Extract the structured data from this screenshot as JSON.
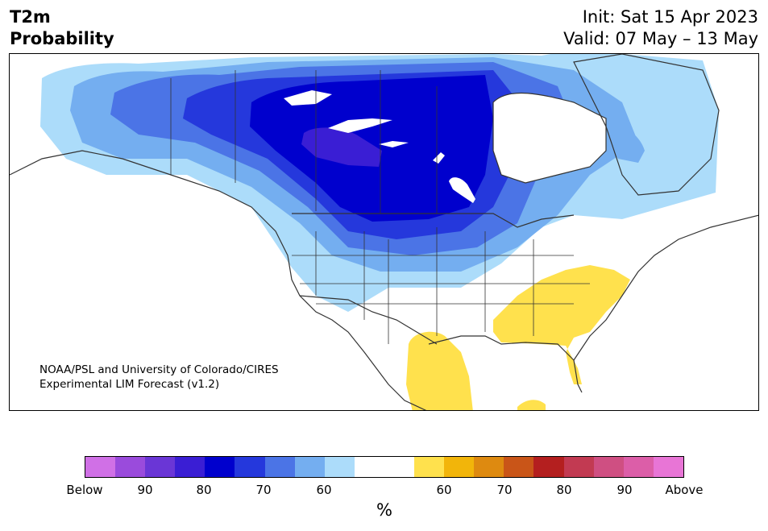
{
  "title": {
    "line1": "T2m",
    "line2": "Probability"
  },
  "dates": {
    "init": "Init: Sat 15 Apr 2023",
    "valid": "Valid: 07 May – 13 May"
  },
  "credit": {
    "line1": "NOAA/PSL and University of Colorado/CIRES",
    "line2": "Experimental LIM Forecast (v1.2)"
  },
  "colorbar": {
    "colors": [
      "#d070e6",
      "#9a4bdc",
      "#6a36d6",
      "#3a1ed4",
      "#0000cd",
      "#2538dc",
      "#4b74e6",
      "#74aef0",
      "#acdcfa",
      "#ffffff",
      "#ffffff",
      "#ffe14d",
      "#f2b50a",
      "#de8a10",
      "#c95518",
      "#b41f1f",
      "#c23a52",
      "#cf4f82",
      "#dc5ea8",
      "#e875d6"
    ],
    "tick_labels": [
      "Below",
      "90",
      "80",
      "70",
      "60",
      "60",
      "70",
      "80",
      "90",
      "Above"
    ],
    "unit": "%"
  },
  "categories": {
    "below": [
      "Below",
      "90",
      "80",
      "70",
      "60"
    ],
    "above": [
      "60",
      "70",
      "80",
      "90",
      "Above"
    ]
  }
}
